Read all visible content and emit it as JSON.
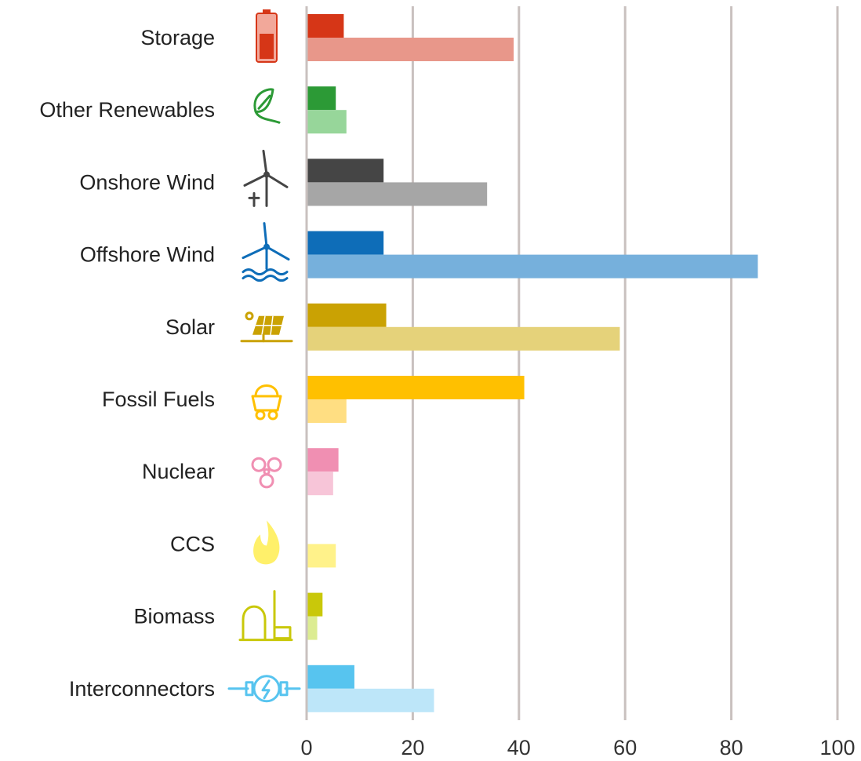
{
  "chart_data": {
    "type": "bar",
    "orientation": "horizontal",
    "categories": [
      "Storage",
      "Other Renewables",
      "Onshore Wind",
      "Offshore Wind",
      "Solar",
      "Fossil Fuels",
      "Nuclear",
      "CCS",
      "Biomass",
      "Interconnectors"
    ],
    "icons": [
      "battery-icon",
      "leaf-icon",
      "onshore-wind-turbine-icon",
      "offshore-wind-turbine-icon",
      "solar-panel-icon",
      "coal-cart-icon",
      "radiation-icon",
      "flame-icon",
      "biomass-plant-icon",
      "interconnector-plug-icon"
    ],
    "series": [
      {
        "values": [
          7,
          5.5,
          14.5,
          14.5,
          15,
          41,
          6,
          0,
          3,
          9
        ]
      },
      {
        "values": [
          39,
          7.5,
          34,
          85,
          59,
          7.5,
          5,
          5.5,
          2,
          24
        ]
      }
    ],
    "colors": {
      "dark": [
        "#d63617",
        "#2c9a36",
        "#454545",
        "#0e6db8",
        "#caa203",
        "#ffc000",
        "#f08fb2",
        "#fff06a",
        "#c9c80a",
        "#57c4ef"
      ],
      "light": [
        "#e8978a",
        "#97d69a",
        "#a6a6a6",
        "#76b0dc",
        "#e5d27a",
        "#ffde82",
        "#f7c5d8",
        "#fff28a",
        "#dcec92",
        "#bde6f9"
      ]
    },
    "xlim": [
      0,
      100
    ],
    "xticks": [
      0,
      20,
      40,
      60,
      80,
      100
    ],
    "xtick_labels": [
      "0",
      "20",
      "40",
      "60",
      "80",
      "100"
    ],
    "grid": true,
    "title": "",
    "xlabel": "",
    "ylabel": ""
  }
}
